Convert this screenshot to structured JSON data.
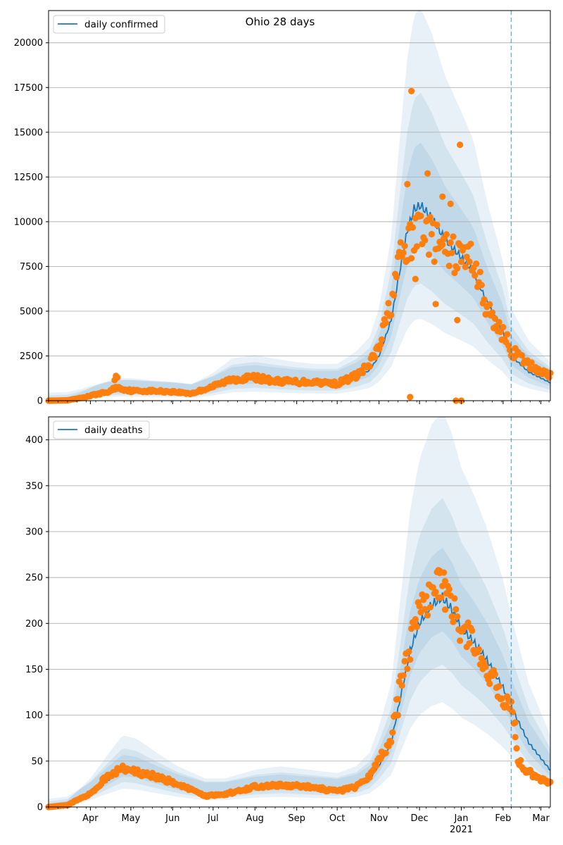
{
  "chart_data": [
    {
      "type": "line",
      "title": "Ohio 28 days",
      "legend": {
        "label": "daily confirmed",
        "placement": "top-left"
      },
      "ylim": [
        0,
        21800
      ],
      "yticks": [
        0,
        2500,
        5000,
        7500,
        10000,
        12500,
        15000,
        17500,
        20000
      ],
      "xlim": [
        "2020-03-01",
        "2021-03-08"
      ],
      "grid": "horizontal",
      "vline_date": "2021-02-07",
      "colors": {
        "line": "#1f77b4",
        "points": "#ff7f0e",
        "band": "#1f77b4",
        "vline": "#1f77b4"
      },
      "line_anchors": [
        [
          "2020-03-01",
          0
        ],
        [
          "2020-03-15",
          20
        ],
        [
          "2020-03-25",
          150
        ],
        [
          "2020-04-05",
          350
        ],
        [
          "2020-04-20",
          550
        ],
        [
          "2020-05-01",
          550
        ],
        [
          "2020-05-15",
          500
        ],
        [
          "2020-06-01",
          450
        ],
        [
          "2020-06-15",
          380
        ],
        [
          "2020-07-01",
          700
        ],
        [
          "2020-07-15",
          1100
        ],
        [
          "2020-08-01",
          1200
        ],
        [
          "2020-08-15",
          1100
        ],
        [
          "2020-09-01",
          1000
        ],
        [
          "2020-09-15",
          950
        ],
        [
          "2020-10-01",
          950
        ],
        [
          "2020-10-15",
          1300
        ],
        [
          "2020-10-25",
          1700
        ],
        [
          "2020-11-01",
          2500
        ],
        [
          "2020-11-10",
          4500
        ],
        [
          "2020-11-17",
          7500
        ],
        [
          "2020-11-22",
          9500
        ],
        [
          "2020-11-27",
          10700
        ],
        [
          "2020-12-02",
          10900
        ],
        [
          "2020-12-10",
          10200
        ],
        [
          "2020-12-20",
          9000
        ],
        [
          "2021-01-01",
          8000
        ],
        [
          "2021-01-10",
          7200
        ],
        [
          "2021-01-20",
          5500
        ],
        [
          "2021-02-01",
          3800
        ],
        [
          "2021-02-07",
          2500
        ],
        [
          "2021-02-20",
          1600
        ],
        [
          "2021-03-08",
          1000
        ]
      ],
      "band_scales": [
        [
          0.8,
          1.28
        ],
        [
          0.6,
          1.55
        ],
        [
          0.42,
          2.0
        ]
      ],
      "points_trend": [
        [
          "2020-03-01",
          0
        ],
        [
          "2020-03-15",
          20
        ],
        [
          "2020-03-25",
          150
        ],
        [
          "2020-04-05",
          350
        ],
        [
          "2020-04-15",
          500
        ],
        [
          "2020-04-20",
          750
        ],
        [
          "2020-05-01",
          550
        ],
        [
          "2020-05-15",
          550
        ],
        [
          "2020-06-01",
          500
        ],
        [
          "2020-06-15",
          400
        ],
        [
          "2020-07-01",
          800
        ],
        [
          "2020-07-15",
          1200
        ],
        [
          "2020-08-01",
          1300
        ],
        [
          "2020-08-15",
          1100
        ],
        [
          "2020-09-01",
          1050
        ],
        [
          "2020-09-15",
          1050
        ],
        [
          "2020-10-01",
          950
        ],
        [
          "2020-10-15",
          1400
        ],
        [
          "2020-10-25",
          2000
        ],
        [
          "2020-11-01",
          3000
        ],
        [
          "2020-11-10",
          5500
        ],
        [
          "2020-11-17",
          8000
        ],
        [
          "2020-11-22",
          8600
        ],
        [
          "2020-11-27",
          9000
        ],
        [
          "2020-12-02",
          10000
        ],
        [
          "2020-12-10",
          9000
        ],
        [
          "2020-12-20",
          8300
        ],
        [
          "2021-01-01",
          8000
        ],
        [
          "2021-01-10",
          8000
        ],
        [
          "2021-01-20",
          5000
        ],
        [
          "2021-02-01",
          3800
        ],
        [
          "2021-02-07",
          2800
        ],
        [
          "2021-02-20",
          2000
        ],
        [
          "2021-03-08",
          1400
        ]
      ],
      "noise": 0.13,
      "outliers": [
        [
          "2020-04-20",
          1380
        ],
        [
          "2020-04-21",
          1300
        ],
        [
          "2020-04-19",
          1150
        ],
        [
          "2020-11-25",
          17300
        ],
        [
          "2020-11-22",
          12100
        ],
        [
          "2020-12-07",
          12700
        ],
        [
          "2020-12-31",
          14300
        ],
        [
          "2020-12-24",
          11000
        ],
        [
          "2020-12-18",
          11400
        ],
        [
          "2020-11-24",
          200
        ],
        [
          "2020-12-28",
          0
        ],
        [
          "2021-01-01",
          0
        ],
        [
          "2020-12-29",
          4500
        ],
        [
          "2020-12-13",
          5400
        ],
        [
          "2020-11-28",
          6800
        ]
      ]
    },
    {
      "type": "line",
      "title": "",
      "legend": {
        "label": "daily deaths",
        "placement": "top-left"
      },
      "ylim": [
        0,
        425
      ],
      "yticks": [
        0,
        50,
        100,
        150,
        200,
        250,
        300,
        350,
        400
      ],
      "xlim": [
        "2020-03-01",
        "2021-03-08"
      ],
      "xticks": [
        {
          "date": "2020-04-01",
          "label": "Apr"
        },
        {
          "date": "2020-05-01",
          "label": "May"
        },
        {
          "date": "2020-06-01",
          "label": "Jun"
        },
        {
          "date": "2020-07-01",
          "label": "Jul"
        },
        {
          "date": "2020-08-01",
          "label": "Aug"
        },
        {
          "date": "2020-09-01",
          "label": "Sep"
        },
        {
          "date": "2020-10-01",
          "label": "Oct"
        },
        {
          "date": "2020-11-01",
          "label": "Nov"
        },
        {
          "date": "2020-12-01",
          "label": "Dec"
        },
        {
          "date": "2021-01-01",
          "label": "Jan"
        },
        {
          "date": "2021-02-01",
          "label": "Feb"
        },
        {
          "date": "2021-03-01",
          "label": "Mar"
        }
      ],
      "xtick_year": {
        "date": "2021-01-01",
        "label": "2021"
      },
      "grid": "horizontal",
      "vline_date": "2021-02-07",
      "colors": {
        "line": "#1f77b4",
        "points": "#ff7f0e",
        "band": "#1f77b4",
        "vline": "#1f77b4"
      },
      "line_anchors": [
        [
          "2020-03-01",
          0
        ],
        [
          "2020-03-15",
          2
        ],
        [
          "2020-04-01",
          15
        ],
        [
          "2020-04-15",
          30
        ],
        [
          "2020-04-25",
          40
        ],
        [
          "2020-05-05",
          38
        ],
        [
          "2020-05-20",
          30
        ],
        [
          "2020-06-05",
          22
        ],
        [
          "2020-06-25",
          15
        ],
        [
          "2020-07-10",
          15
        ],
        [
          "2020-08-01",
          20
        ],
        [
          "2020-08-20",
          22
        ],
        [
          "2020-09-10",
          20
        ],
        [
          "2020-10-01",
          18
        ],
        [
          "2020-10-15",
          22
        ],
        [
          "2020-10-25",
          30
        ],
        [
          "2020-11-01",
          45
        ],
        [
          "2020-11-10",
          70
        ],
        [
          "2020-11-17",
          120
        ],
        [
          "2020-11-24",
          170
        ],
        [
          "2020-12-01",
          200
        ],
        [
          "2020-12-10",
          220
        ],
        [
          "2020-12-18",
          228
        ],
        [
          "2020-12-25",
          215
        ],
        [
          "2021-01-01",
          195
        ],
        [
          "2021-01-10",
          180
        ],
        [
          "2021-01-20",
          160
        ],
        [
          "2021-02-01",
          130
        ],
        [
          "2021-02-10",
          100
        ],
        [
          "2021-02-20",
          70
        ],
        [
          "2021-03-08",
          40
        ]
      ],
      "band_scales": [
        [
          0.84,
          1.2
        ],
        [
          0.68,
          1.45
        ],
        [
          0.5,
          1.88
        ]
      ],
      "points_trend": [
        [
          "2020-03-01",
          0
        ],
        [
          "2020-03-15",
          2
        ],
        [
          "2020-04-01",
          15
        ],
        [
          "2020-04-15",
          35
        ],
        [
          "2020-04-25",
          42
        ],
        [
          "2020-05-05",
          38
        ],
        [
          "2020-05-20",
          33
        ],
        [
          "2020-06-05",
          25
        ],
        [
          "2020-06-25",
          12
        ],
        [
          "2020-07-10",
          14
        ],
        [
          "2020-08-01",
          22
        ],
        [
          "2020-08-20",
          24
        ],
        [
          "2020-09-10",
          22
        ],
        [
          "2020-10-01",
          17
        ],
        [
          "2020-10-15",
          22
        ],
        [
          "2020-10-25",
          35
        ],
        [
          "2020-11-01",
          50
        ],
        [
          "2020-11-10",
          75
        ],
        [
          "2020-11-17",
          140
        ],
        [
          "2020-11-24",
          175
        ],
        [
          "2020-12-01",
          210
        ],
        [
          "2020-12-10",
          232
        ],
        [
          "2020-12-18",
          238
        ],
        [
          "2020-12-25",
          215
        ],
        [
          "2021-01-01",
          195
        ],
        [
          "2021-01-10",
          180
        ],
        [
          "2021-01-20",
          150
        ],
        [
          "2021-02-01",
          120
        ],
        [
          "2021-02-07",
          110
        ],
        [
          "2021-02-12",
          50
        ],
        [
          "2021-02-20",
          38
        ],
        [
          "2021-03-08",
          25
        ]
      ],
      "noise": 0.09,
      "outliers": [
        [
          "2020-12-15",
          258
        ],
        [
          "2020-12-16",
          255
        ],
        [
          "2020-12-20",
          246
        ],
        [
          "2020-11-15",
          100
        ],
        [
          "2021-02-10",
          92
        ]
      ]
    }
  ]
}
